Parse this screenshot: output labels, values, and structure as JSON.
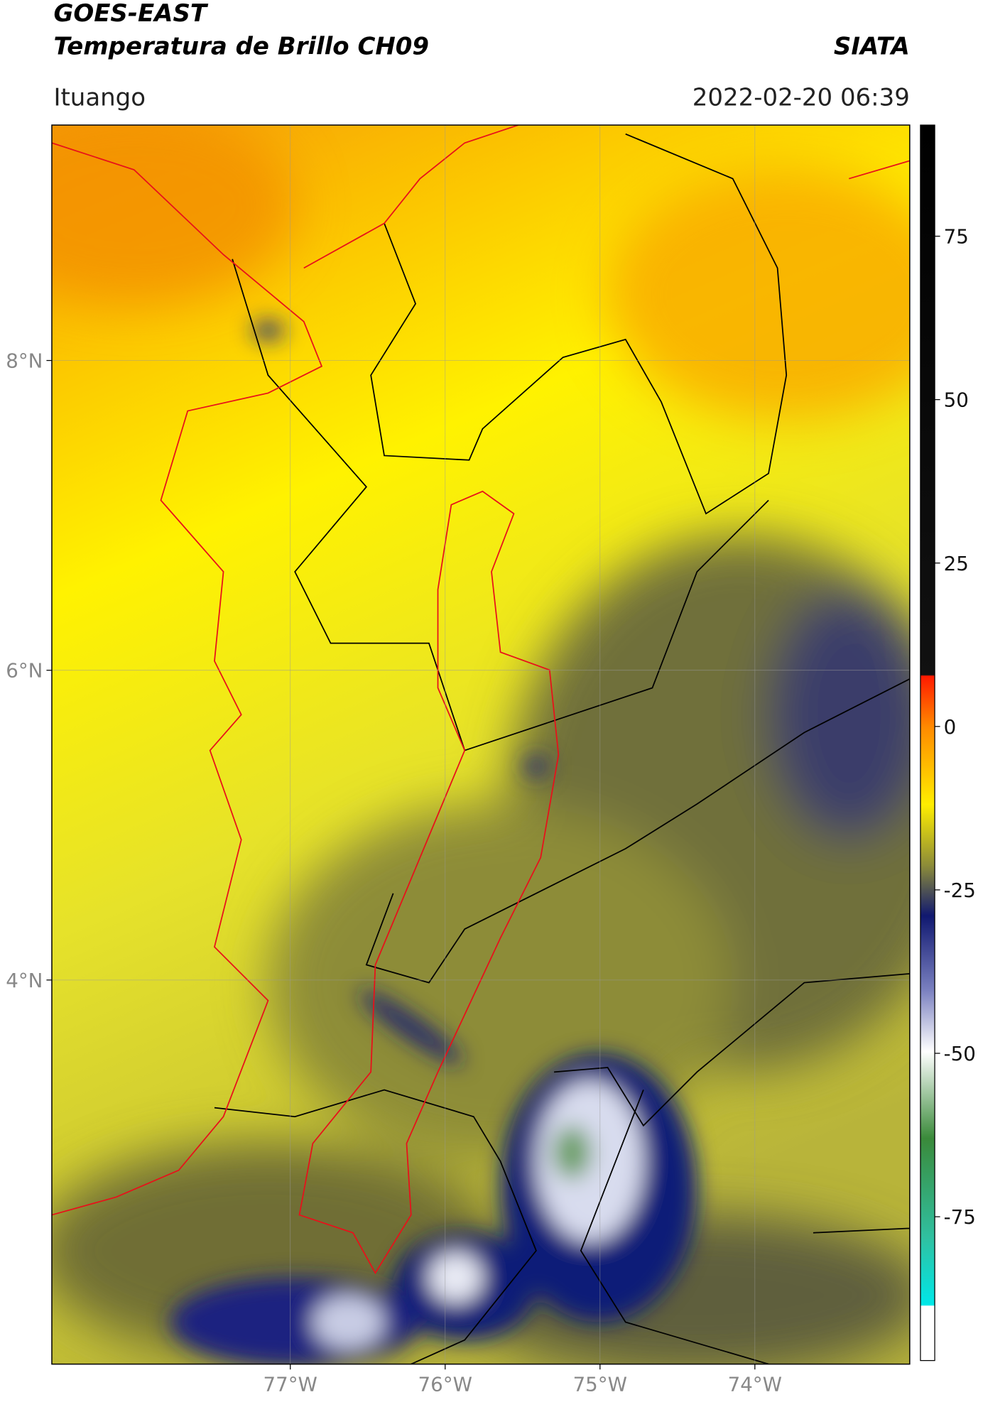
{
  "header": {
    "title": "GOES-EAST",
    "subtitle": "Temperatura de Brillo CH09",
    "source": "SIATA",
    "region": "Ituango",
    "datetime": "2022-02-20 06:39"
  },
  "map": {
    "xlim": [
      -78.54,
      -73.0
    ],
    "ylim": [
      1.52,
      9.52
    ],
    "grid": true,
    "xticks": [
      {
        "value": -77,
        "label": "77°W"
      },
      {
        "value": -76,
        "label": "76°W"
      },
      {
        "value": -75,
        "label": "75°W"
      },
      {
        "value": -74,
        "label": "74°W"
      }
    ],
    "yticks": [
      {
        "value": 8,
        "label": "8°N"
      },
      {
        "value": 6,
        "label": "6°N"
      },
      {
        "value": 4,
        "label": "4°N"
      }
    ]
  },
  "colorbar": {
    "lim": [
      -97,
      92
    ],
    "ticks": [
      75,
      50,
      25,
      0,
      -25,
      -50,
      -75
    ]
  }
}
